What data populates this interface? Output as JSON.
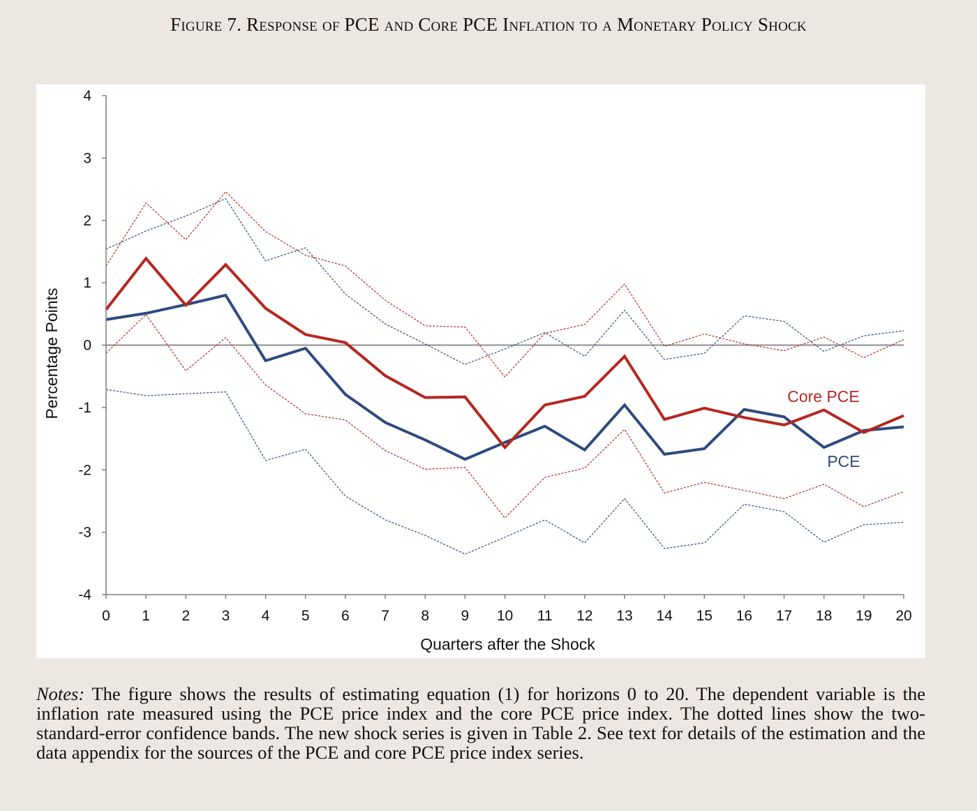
{
  "figure": {
    "title": "Figure 7. Response of PCE and Core PCE Inflation to a Monetary Policy Shock"
  },
  "notes": {
    "label": "Notes:",
    "text": "The figure shows the results of estimating equation (1) for horizons 0 to 20. The dependent variable is the inflation rate measured using the PCE price index and the core PCE price index. The dotted lines show the two-standard-error confidence bands. The new shock series is given in Table 2. See text for details of the estimation and the data appendix for the sources of the PCE and core PCE price index series."
  },
  "colors": {
    "pce": "#2e4a7f",
    "core_pce": "#b5271f",
    "zero_line": "#8c8c8c",
    "axis": "#7f7f7f",
    "background": "#ece8e1"
  },
  "chart_data": {
    "type": "line",
    "title": "",
    "xlabel": "Quarters after the Shock",
    "ylabel": "Percentage Points",
    "xlim": [
      0,
      20
    ],
    "ylim": [
      -4,
      4
    ],
    "x": [
      0,
      1,
      2,
      3,
      4,
      5,
      6,
      7,
      8,
      9,
      10,
      11,
      12,
      13,
      14,
      15,
      16,
      17,
      18,
      19,
      20
    ],
    "x_ticks": [
      "0",
      "1",
      "2",
      "3",
      "4",
      "5",
      "6",
      "7",
      "8",
      "9",
      "10",
      "11",
      "12",
      "13",
      "14",
      "15",
      "16",
      "17",
      "18",
      "19",
      "20"
    ],
    "y_ticks": [
      "4",
      "3",
      "2",
      "1",
      "0",
      "-1",
      "-2",
      "-3",
      "-4"
    ],
    "y_tick_values": [
      4,
      3,
      2,
      1,
      0,
      -1,
      -2,
      -3,
      -4
    ],
    "grid": false,
    "legend": "inline labels",
    "series": [
      {
        "name": "PCE",
        "color": "#2e4a7f",
        "values": [
          0.41,
          0.51,
          0.65,
          0.8,
          -0.25,
          -0.05,
          -0.79,
          -1.24,
          -1.52,
          -1.83,
          -1.56,
          -1.3,
          -1.68,
          -0.96,
          -1.75,
          -1.66,
          -1.03,
          -1.15,
          -1.64,
          -1.37,
          -1.31
        ],
        "upper_band": [
          1.54,
          1.83,
          2.07,
          2.35,
          1.35,
          1.56,
          0.82,
          0.34,
          0.02,
          -0.31,
          -0.06,
          0.2,
          -0.18,
          0.56,
          -0.23,
          -0.13,
          0.47,
          0.38,
          -0.1,
          0.15,
          0.23
        ],
        "lower_band": [
          -0.71,
          -0.81,
          -0.78,
          -0.75,
          -1.85,
          -1.67,
          -2.42,
          -2.8,
          -3.05,
          -3.35,
          -3.08,
          -2.8,
          -3.17,
          -2.46,
          -3.26,
          -3.17,
          -2.55,
          -2.67,
          -3.16,
          -2.88,
          -2.84
        ]
      },
      {
        "name": "Core PCE",
        "color": "#b5271f",
        "values": [
          0.57,
          1.39,
          0.64,
          1.29,
          0.59,
          0.17,
          0.04,
          -0.49,
          -0.84,
          -0.83,
          -1.64,
          -0.96,
          -0.82,
          -0.18,
          -1.19,
          -1.01,
          -1.16,
          -1.28,
          -1.04,
          -1.4,
          -1.13
        ],
        "upper_band": [
          1.27,
          2.28,
          1.69,
          2.46,
          1.82,
          1.44,
          1.27,
          0.72,
          0.31,
          0.29,
          -0.51,
          0.19,
          0.33,
          0.98,
          -0.02,
          0.18,
          0.02,
          -0.09,
          0.13,
          -0.2,
          0.09
        ],
        "lower_band": [
          -0.13,
          0.49,
          -0.41,
          0.12,
          -0.64,
          -1.1,
          -1.2,
          -1.69,
          -1.99,
          -1.96,
          -2.77,
          -2.12,
          -1.97,
          -1.35,
          -2.37,
          -2.2,
          -2.33,
          -2.46,
          -2.23,
          -2.59,
          -2.35
        ]
      }
    ]
  }
}
